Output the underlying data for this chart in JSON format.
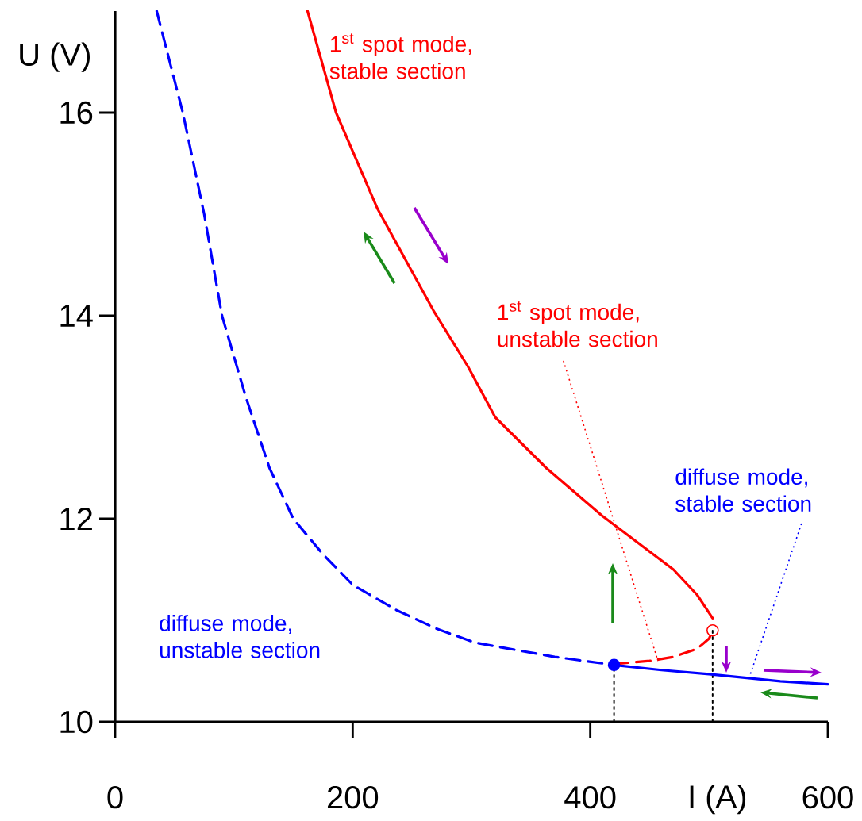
{
  "chart_data": {
    "type": "line",
    "xlabel": "I (A)",
    "ylabel": "U (V)",
    "xlim": [
      0,
      600
    ],
    "ylim": [
      10,
      17
    ],
    "xticks": [
      0,
      200,
      400,
      600
    ],
    "yticks": [
      10,
      12,
      14,
      16
    ],
    "series": [
      {
        "color": "#000000",
        "line_style": "dotted",
        "x": [
          420,
          420
        ],
        "values": [
          10,
          10.56
        ]
      },
      {
        "color": "#000000",
        "line_style": "dotted",
        "x": [
          503,
          503
        ],
        "values": [
          10,
          10.9
        ]
      },
      {
        "color": "#0000ff",
        "line_style": "dashed",
        "x": [
          35,
          57,
          75,
          90,
          110,
          130,
          150,
          175,
          200,
          237,
          270,
          303,
          370,
          420
        ],
        "values": [
          17.0,
          16.0,
          15.0,
          14.0,
          13.2,
          12.5,
          12.0,
          11.65,
          11.35,
          11.1,
          10.92,
          10.78,
          10.64,
          10.56
        ]
      },
      {
        "color": "#0000ff",
        "line_style": "solid",
        "x": [
          420,
          460,
          500,
          560,
          600
        ],
        "values": [
          10.56,
          10.51,
          10.47,
          10.4,
          10.37
        ]
      },
      {
        "color": "#ff0000",
        "line_style": "solid",
        "x": [
          162,
          186,
          221,
          268,
          297,
          320,
          363,
          410,
          470,
          490,
          503
        ],
        "values": [
          17.0,
          16.0,
          15.05,
          14.05,
          13.5,
          13.0,
          12.5,
          12.03,
          11.5,
          11.25,
          11.02
        ]
      },
      {
        "color": "#ff0000",
        "line_style": "dashed",
        "x": [
          420,
          450,
          470,
          490,
          500,
          503
        ],
        "values": [
          10.57,
          10.6,
          10.64,
          10.72,
          10.82,
          10.9
        ]
      },
      {
        "type": "scatter",
        "color": "#0000ff",
        "marker": "circle",
        "x": [
          420
        ],
        "values": [
          10.56
        ]
      },
      {
        "type": "scatter",
        "color": "#ff0000",
        "marker": "circle",
        "x": [
          503
        ],
        "values": [
          10.9
        ]
      }
    ],
    "annotations": [
      "1$^{st}$ spot mode, stable section",
      {
        "text": "1$^{st}$ spot mode, unstable section",
        "x": 457,
        "y": 10.6
      },
      {
        "text": "diffuse mode, stable section",
        "x": 533,
        "y": 10.41
      },
      "diffuse mode, unstable section"
    ]
  }
}
